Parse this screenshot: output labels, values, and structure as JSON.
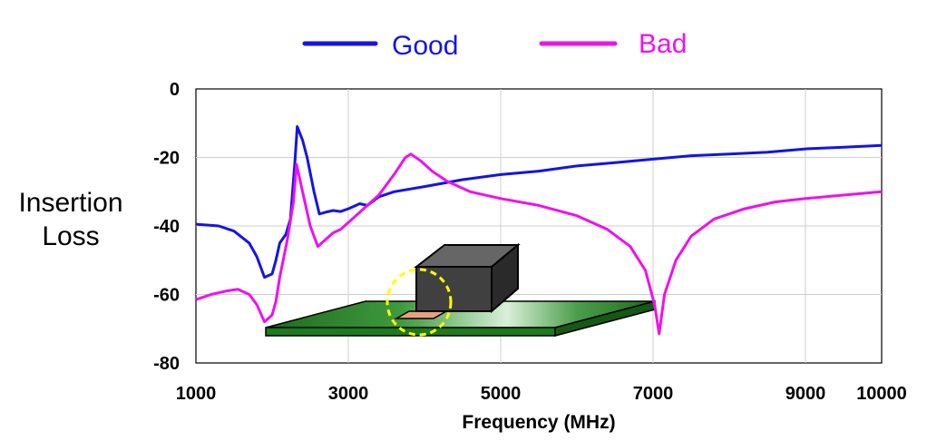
{
  "chart_data": {
    "type": "line",
    "xlabel": "Frequency (MHz)",
    "ylabel_lines": [
      "Insertion",
      "Loss"
    ],
    "xlim": [
      1000,
      10000
    ],
    "ylim": [
      -80,
      0
    ],
    "x_ticks": [
      "1000",
      "3000",
      "5000",
      "7000",
      "9000",
      "10000"
    ],
    "y_ticks": [
      "0",
      "-20",
      "-40",
      "-60",
      "-80"
    ],
    "grid": true,
    "legend_position": "top",
    "series": [
      {
        "name": "Good",
        "color": "#1414e6",
        "points": [
          [
            1000,
            -39.5
          ],
          [
            1300,
            -40
          ],
          [
            1500,
            -41.5
          ],
          [
            1700,
            -45
          ],
          [
            1800,
            -49
          ],
          [
            1900,
            -55
          ],
          [
            2000,
            -54
          ],
          [
            2050,
            -50
          ],
          [
            2100,
            -45
          ],
          [
            2180,
            -42.5
          ],
          [
            2240,
            -38
          ],
          [
            2300,
            -21
          ],
          [
            2330,
            -11
          ],
          [
            2400,
            -15
          ],
          [
            2460,
            -20
          ],
          [
            2550,
            -30
          ],
          [
            2620,
            -36.5
          ],
          [
            2700,
            -36
          ],
          [
            2800,
            -35.5
          ],
          [
            2900,
            -35.8
          ],
          [
            3000,
            -35
          ],
          [
            3150,
            -33.5
          ],
          [
            3250,
            -34
          ],
          [
            3400,
            -31.5
          ],
          [
            3600,
            -30
          ],
          [
            4000,
            -28.5
          ],
          [
            4500,
            -26.5
          ],
          [
            5000,
            -25
          ],
          [
            5500,
            -24
          ],
          [
            6000,
            -22.5
          ],
          [
            6500,
            -21.5
          ],
          [
            7000,
            -20.5
          ],
          [
            7500,
            -19.5
          ],
          [
            8000,
            -19
          ],
          [
            8500,
            -18.5
          ],
          [
            9000,
            -17.5
          ],
          [
            9500,
            -17
          ],
          [
            10000,
            -16.5
          ]
        ]
      },
      {
        "name": "Bad",
        "color": "#ee11ee",
        "points": [
          [
            1000,
            -61.5
          ],
          [
            1200,
            -60
          ],
          [
            1400,
            -59
          ],
          [
            1550,
            -58.5
          ],
          [
            1700,
            -60
          ],
          [
            1800,
            -63
          ],
          [
            1900,
            -68
          ],
          [
            2000,
            -66
          ],
          [
            2050,
            -62
          ],
          [
            2100,
            -55
          ],
          [
            2200,
            -44
          ],
          [
            2280,
            -33
          ],
          [
            2320,
            -22
          ],
          [
            2400,
            -30
          ],
          [
            2500,
            -40
          ],
          [
            2600,
            -46
          ],
          [
            2700,
            -44
          ],
          [
            2800,
            -42
          ],
          [
            2900,
            -41
          ],
          [
            3000,
            -39
          ],
          [
            3100,
            -37
          ],
          [
            3200,
            -35
          ],
          [
            3400,
            -31
          ],
          [
            3600,
            -25
          ],
          [
            3750,
            -20
          ],
          [
            3820,
            -19
          ],
          [
            3950,
            -21
          ],
          [
            4100,
            -24
          ],
          [
            4300,
            -27
          ],
          [
            4600,
            -30
          ],
          [
            5000,
            -32
          ],
          [
            5500,
            -34
          ],
          [
            6000,
            -37
          ],
          [
            6400,
            -41
          ],
          [
            6700,
            -46
          ],
          [
            6900,
            -53
          ],
          [
            7020,
            -63
          ],
          [
            7080,
            -71.5
          ],
          [
            7150,
            -60
          ],
          [
            7300,
            -50
          ],
          [
            7500,
            -43
          ],
          [
            7800,
            -38
          ],
          [
            8200,
            -35
          ],
          [
            8600,
            -33
          ],
          [
            9000,
            -32
          ],
          [
            9500,
            -31
          ],
          [
            10000,
            -30
          ]
        ]
      }
    ]
  }
}
